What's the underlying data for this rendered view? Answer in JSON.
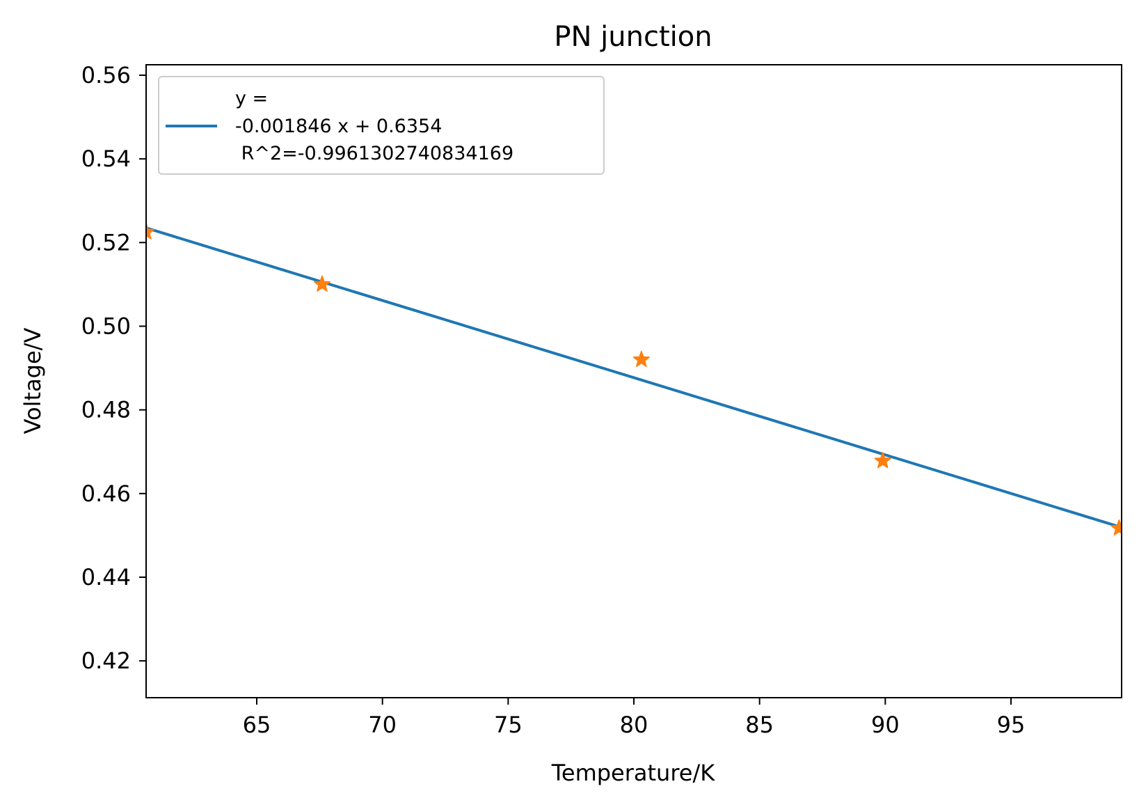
{
  "chart_data": {
    "type": "scatter",
    "title": "PN junction",
    "xlabel": "Temperature/K",
    "ylabel": "Voltage/V",
    "xlim": [
      60.6,
      99.4
    ],
    "ylim": [
      0.4112,
      0.5625
    ],
    "xticks": [
      65,
      70,
      75,
      80,
      85,
      90,
      95
    ],
    "xtick_labels": [
      "65",
      "70",
      "75",
      "80",
      "85",
      "90",
      "95"
    ],
    "yticks": [
      0.42,
      0.44,
      0.46,
      0.48,
      0.5,
      0.52,
      0.54,
      0.56
    ],
    "ytick_labels": [
      "0.42",
      "0.44",
      "0.46",
      "0.48",
      "0.50",
      "0.52",
      "0.54",
      "0.56"
    ],
    "grid": false,
    "legend": {
      "location": "upper-left",
      "lines": [
        "y =",
        "-0.001846 x + 0.6354",
        " R^2=-0.9961302740834169"
      ]
    },
    "series": [
      {
        "kind": "line",
        "color": "#1f77b4",
        "x": [
          60.6,
          99.4
        ],
        "y": [
          0.5235,
          0.4519
        ]
      },
      {
        "kind": "points",
        "marker": "star",
        "color": "#ff7f0e",
        "x": [
          60.6,
          67.6,
          80.3,
          89.9,
          99.3
        ],
        "y": [
          0.5225,
          0.51,
          0.492,
          0.4678,
          0.4517
        ]
      }
    ]
  }
}
